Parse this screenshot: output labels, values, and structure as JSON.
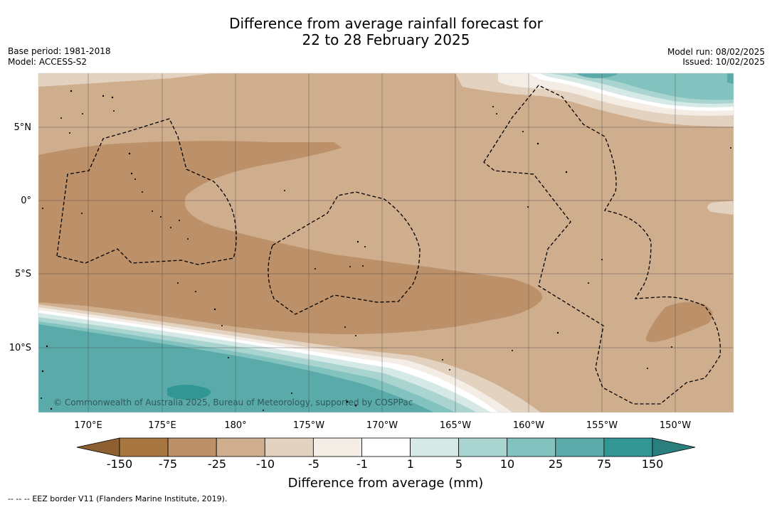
{
  "title": {
    "line1": "Difference from average rainfall forecast for",
    "line2": "22 to 28 February 2025"
  },
  "meta": {
    "base_period": "Base period: 1981-2018",
    "model": "Model: ACCESS-S2",
    "model_run": "Model run: 08/02/2025",
    "issued": "Issued: 10/02/2025"
  },
  "map": {
    "lat_ticks": [
      "5°N",
      "0°",
      "5°S",
      "10°S"
    ],
    "lon_ticks": [
      "170°E",
      "175°E",
      "180°",
      "175°W",
      "170°W",
      "165°W",
      "160°W",
      "155°W",
      "150°W"
    ],
    "copyright": "© Commonwealth of Australia 2025, Bureau of Meteorology, supported by COSPPac"
  },
  "colorbar": {
    "title": "Difference from average (mm)",
    "labels": [
      "-150",
      "-75",
      "-25",
      "-10",
      "-5",
      "-1",
      "1",
      "5",
      "10",
      "25",
      "75",
      "150"
    ],
    "colors": [
      "#a87640",
      "#bc9068",
      "#cfae8e",
      "#e4d2c0",
      "#f3ede6",
      "#ffffff",
      "#d5e9e6",
      "#a9d4d0",
      "#82c2bf",
      "#5aaaa9",
      "#329794"
    ],
    "under_color": "#8e6031",
    "over_color": "#2a7f7c"
  },
  "footer": {
    "legend_symbol": "--  --  --",
    "legend_text": "EEZ border V11 (Flanders Marine Institute, 2019)."
  }
}
